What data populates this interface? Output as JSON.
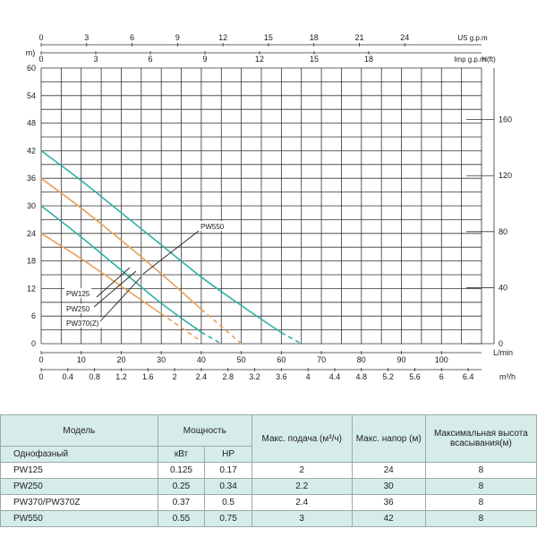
{
  "chart_data": {
    "type": "line",
    "x_ranges": {
      "lmin": [
        0,
        110
      ],
      "m3h": [
        0,
        6.6
      ]
    },
    "y_ranges": {
      "m": [
        0,
        60
      ],
      "ft": [
        0,
        200
      ]
    },
    "axes": {
      "y_left_label": "m)",
      "y_left_ticks": [
        "0",
        "6",
        "12",
        "18",
        "24",
        "30",
        "36",
        "42",
        "48",
        "54",
        "60"
      ],
      "y_right_label": "H(ft)",
      "y_right_ticks": [
        "0",
        "40",
        "80",
        "120",
        "160"
      ],
      "x_bottom1_label": "L/min",
      "x_bottom1_ticks": [
        "0",
        "10",
        "20",
        "30",
        "40",
        "50",
        "60",
        "70",
        "80",
        "90",
        "100"
      ],
      "x_bottom2_label": "m³/h",
      "x_bottom2_ticks": [
        "0",
        "0.4",
        "0.8",
        "1.2",
        "1.6",
        "2",
        "2.4",
        "2.8",
        "3.2",
        "3.6",
        "4",
        "4.4",
        "4.8",
        "5.2",
        "5.6",
        "6",
        "6.4"
      ],
      "x_top1_label": "US g.p.m",
      "x_top1_ticks": [
        "0",
        "3",
        "6",
        "9",
        "12",
        "15",
        "18",
        "21",
        "24"
      ],
      "x_top2_label": "Imp g.p.m",
      "x_top2_ticks": [
        "0",
        "3",
        "6",
        "9",
        "12",
        "15",
        "18"
      ]
    },
    "series": [
      {
        "name": "PW125",
        "color": "#e8a15a",
        "x": [
          0,
          10,
          20,
          30,
          40
        ],
        "y": [
          24,
          18.5,
          12.5,
          6.5,
          0.5
        ]
      },
      {
        "name": "PW250",
        "color": "#2fb0a4",
        "x": [
          0,
          10,
          20,
          30,
          40,
          45
        ],
        "y": [
          30,
          23.2,
          16,
          8.8,
          2.5,
          0
        ]
      },
      {
        "name": "PW370(Z)",
        "color": "#e8a15a",
        "x": [
          0,
          10,
          20,
          30,
          40,
          50
        ],
        "y": [
          36,
          29.5,
          22.5,
          15.2,
          7.5,
          0
        ]
      },
      {
        "name": "PW550",
        "color": "#2fb0a4",
        "x": [
          0,
          10,
          20,
          30,
          40,
          50,
          60,
          65
        ],
        "y": [
          42,
          35.5,
          28.5,
          21.5,
          14.5,
          8.3,
          2.4,
          0
        ]
      }
    ]
  },
  "table": {
    "headers": {
      "model": "Модель",
      "power": "Мощность",
      "max_flow": "Макс. подача (м³/ч)",
      "max_head": "Макс. напор (м)",
      "max_suction": "Максимальная высота всасывания(м)",
      "single_phase": "Однофазный",
      "kw": "кВт",
      "hp": "HP"
    },
    "rows": [
      {
        "model": "PW125",
        "kw": "0.125",
        "hp": "0.17",
        "flow": "2",
        "head": "24",
        "suction": "8"
      },
      {
        "model": "PW250",
        "kw": "0.25",
        "hp": "0.34",
        "flow": "2.2",
        "head": "30",
        "suction": "8"
      },
      {
        "model": "PW370/PW370Z",
        "kw": "0.37",
        "hp": "0.5",
        "flow": "2.4",
        "head": "36",
        "suction": "8"
      },
      {
        "model": "PW550",
        "kw": "0.55",
        "hp": "0.75",
        "flow": "3",
        "head": "42",
        "suction": "8"
      }
    ]
  }
}
